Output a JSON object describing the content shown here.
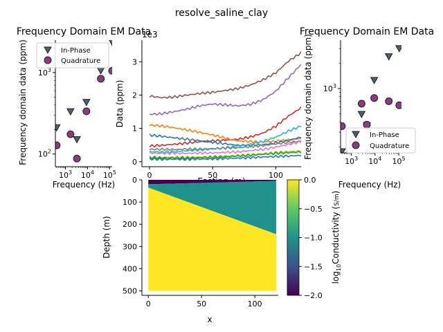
{
  "suptitle": "resolve_saline_clay",
  "colors": {
    "inphase_fill": "#4d6075",
    "quadrature_fill": "#8e3a7e",
    "marker_edge": "#222222",
    "model_low": "#440154",
    "model_mid": "#21918c",
    "model_high": "#fde725"
  },
  "chart_data": [
    {
      "id": "fd-left",
      "type": "scatter",
      "title": "Frequency Domain EM Data",
      "xlabel": "Frequency (Hz)",
      "ylabel": "Frequency domain data (ppm)",
      "xscale": "log",
      "yscale": "log",
      "xlim": [
        350,
        130000
      ],
      "ylim": [
        70,
        2500
      ],
      "xticks": [
        {
          "v": 1000,
          "label": "10^3"
        },
        {
          "v": 10000,
          "label": "10^4"
        },
        {
          "v": 100000,
          "label": "10^5"
        }
      ],
      "yticks": [
        {
          "v": 100,
          "label": "10^2"
        },
        {
          "v": 1000,
          "label": "10^3"
        }
      ],
      "legend": {
        "position": "upper-left",
        "entries": [
          "In-Phase",
          "Quadrature"
        ]
      },
      "series": [
        {
          "name": "In-Phase",
          "marker": "triangle-down",
          "x": [
            400,
            1700,
            3300,
            8900,
            40000,
            130000
          ],
          "y": [
            210,
            330,
            150,
            430,
            1050,
            2350
          ]
        },
        {
          "name": "Quadrature",
          "marker": "circle",
          "x": [
            400,
            1700,
            3300,
            8900,
            40000,
            130000
          ],
          "y": [
            128,
            175,
            88,
            335,
            840,
            1050
          ]
        }
      ]
    },
    {
      "id": "profile",
      "type": "line",
      "xlabel": "Easting (m)",
      "ylabel": "Data (ppm)",
      "y_offset_label": "1e3",
      "xlim": [
        -6,
        120
      ],
      "ylim": [
        -0.15,
        3.65
      ],
      "xticks": [
        0,
        50,
        100
      ],
      "yticks": [
        0,
        1,
        2,
        3
      ],
      "x": [
        0,
        10,
        20,
        30,
        40,
        50,
        60,
        70,
        80,
        90,
        100,
        110,
        120
      ],
      "series": [
        {
          "color": "#8c564b",
          "values": [
            1.97,
            1.93,
            1.96,
            2.02,
            2.07,
            2.1,
            2.15,
            2.2,
            2.3,
            2.45,
            2.65,
            3.0,
            3.25
          ]
        },
        {
          "color": "#9467bd",
          "values": [
            1.42,
            1.45,
            1.52,
            1.6,
            1.7,
            1.75,
            1.72,
            1.68,
            1.72,
            1.85,
            2.1,
            2.5,
            2.9
          ]
        },
        {
          "color": "#d62728",
          "values": [
            0.47,
            0.5,
            0.54,
            0.58,
            0.62,
            0.64,
            0.66,
            0.68,
            0.74,
            0.85,
            1.05,
            1.35,
            1.6
          ]
        },
        {
          "color": "#ff7f0e",
          "values": [
            1.1,
            1.08,
            1.03,
            0.97,
            0.9,
            0.82,
            0.72,
            0.63,
            0.6,
            0.58,
            0.6,
            0.63,
            0.68
          ]
        },
        {
          "color": "#1f77b4",
          "values": [
            0.8,
            0.77,
            0.73,
            0.69,
            0.65,
            0.6,
            0.55,
            0.5,
            0.48,
            0.5,
            0.55,
            0.62,
            0.72
          ]
        },
        {
          "color": "#17becf",
          "values": [
            0.3,
            0.3,
            0.32,
            0.35,
            0.37,
            0.4,
            0.43,
            0.47,
            0.52,
            0.6,
            0.72,
            0.9,
            1.05
          ]
        },
        {
          "color": "#7f7f7f",
          "values": [
            0.37,
            0.38,
            0.38,
            0.4,
            0.4,
            0.41,
            0.42,
            0.42,
            0.45,
            0.47,
            0.52,
            0.56,
            0.6
          ]
        },
        {
          "color": "#e377c2",
          "values": [
            0.26,
            0.26,
            0.27,
            0.27,
            0.28,
            0.28,
            0.29,
            0.3,
            0.33,
            0.36,
            0.42,
            0.5,
            0.58
          ]
        },
        {
          "color": "#bcbd22",
          "values": [
            0.14,
            0.14,
            0.15,
            0.15,
            0.16,
            0.17,
            0.18,
            0.19,
            0.21,
            0.23,
            0.26,
            0.28,
            0.3
          ]
        },
        {
          "color": "#2ca02c",
          "values": [
            0.12,
            0.12,
            0.13,
            0.13,
            0.14,
            0.15,
            0.16,
            0.17,
            0.19,
            0.21,
            0.23,
            0.25,
            0.27
          ]
        },
        {
          "color": "#1f77b4",
          "values": [
            0.08,
            0.08,
            0.09,
            0.09,
            0.1,
            0.1,
            0.11,
            0.11,
            0.12,
            0.13,
            0.14,
            0.15,
            0.17
          ]
        }
      ]
    },
    {
      "id": "fd-right",
      "type": "scatter",
      "title": "Frequency Domain EM Data",
      "xlabel": "Frequency (Hz)",
      "ylabel": "Frequency domain data (ppm)",
      "xscale": "log",
      "yscale": "log",
      "xlim": [
        350,
        130000
      ],
      "ylim": [
        170,
        3800
      ],
      "xticks": [
        {
          "v": 1000,
          "label": "10^3"
        },
        {
          "v": 10000,
          "label": "10^4"
        },
        {
          "v": 100000,
          "label": "10^5"
        }
      ],
      "yticks": [
        {
          "v": 1000,
          "label": "10^3"
        }
      ],
      "legend": {
        "position": "lower-right",
        "entries": [
          "In-Phase",
          "Quadrature"
        ]
      },
      "series": [
        {
          "name": "In-Phase",
          "marker": "triangle-down",
          "x": [
            400,
            2700,
            4500,
            9200,
            38000,
            105000
          ],
          "y": [
            175,
            490,
            360,
            1250,
            2400,
            3000
          ]
        },
        {
          "name": "Quadrature",
          "marker": "circle",
          "x": [
            400,
            2700,
            4500,
            9200,
            38000,
            105000
          ],
          "y": [
            355,
            660,
            370,
            770,
            705,
            630
          ]
        }
      ]
    },
    {
      "id": "model",
      "type": "heatmap",
      "xlabel": "x",
      "ylabel": "Depth (m)",
      "xlim": [
        -6,
        122
      ],
      "ylim": [
        520,
        0
      ],
      "xticks": [
        0,
        50,
        100
      ],
      "yticks": [
        0,
        100,
        200,
        300,
        400,
        500
      ],
      "x_extent": [
        0,
        120
      ],
      "depth_extent": [
        0,
        500
      ],
      "layers": [
        {
          "name": "top",
          "value": -2.0,
          "depth_start": [
            0,
            0
          ],
          "depth_end": [
            20,
            5
          ]
        },
        {
          "name": "middle",
          "value": -1.0,
          "depth_start": [
            20,
            5
          ],
          "depth_end": [
            35,
            245
          ]
        },
        {
          "name": "bottom",
          "value": 0.0,
          "depth_start": [
            35,
            245
          ],
          "depth_end": [
            500,
            500
          ]
        }
      ],
      "colorbar": {
        "label": "log10Conductivity (S/m)",
        "range": [
          -2.0,
          0.0
        ],
        "ticks": [
          "0.0",
          "-0.5",
          "-1.0",
          "-1.5",
          "-2.0"
        ]
      }
    }
  ]
}
